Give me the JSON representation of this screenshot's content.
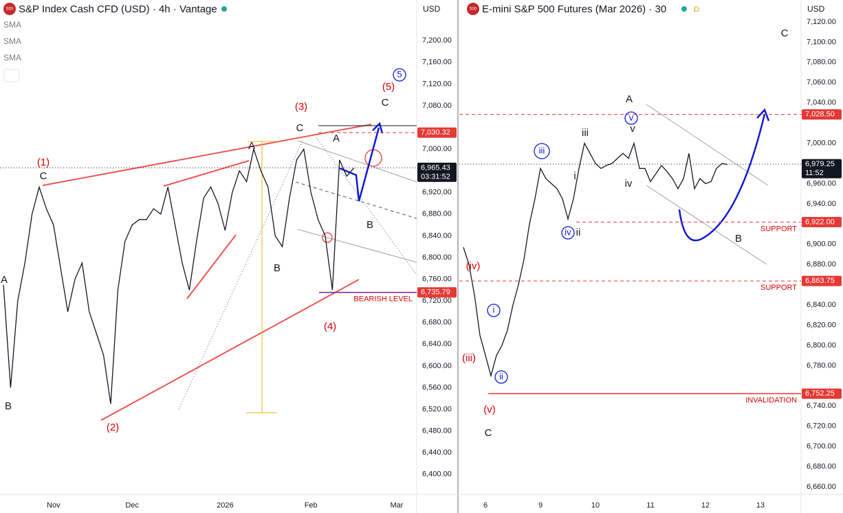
{
  "header": {
    "badge": "500",
    "left_title": "S&P Index Cash CFD (USD) · 4h · Vantage",
    "sma": [
      "SMA",
      "SMA",
      "SMA"
    ],
    "currency": "USD",
    "right_title": "E-mini S&P 500 Futures (Mar 2026) · 30",
    "right_currency": "USD",
    "right_flag": "D"
  },
  "chart_data": [
    {
      "type": "line",
      "color": "#131722",
      "categories": [
        null,
        null,
        null,
        null,
        null,
        null,
        null,
        "Nov",
        null,
        null,
        null,
        null,
        null,
        null,
        null,
        null,
        null,
        null,
        "Dec",
        null,
        null,
        null,
        null,
        null,
        null,
        null,
        null,
        null,
        null,
        null,
        null,
        "2026",
        null,
        null,
        null,
        null,
        null,
        null,
        null,
        null,
        null,
        null,
        null,
        "Feb",
        null,
        null,
        null,
        null,
        null,
        null,
        null,
        null,
        null,
        null,
        null,
        "Mar",
        null,
        null
      ],
      "values": [
        6750,
        6560,
        6720,
        6790,
        6880,
        6930,
        6890,
        6860,
        6780,
        6700,
        6760,
        6790,
        6700,
        6660,
        6620,
        6530,
        6740,
        6830,
        6860,
        6870,
        6870,
        6890,
        6880,
        6930,
        6860,
        6790,
        6740,
        6830,
        6910,
        6930,
        6900,
        6850,
        6920,
        6960,
        6940,
        7000,
        6960,
        6930,
        6840,
        6820,
        6910,
        6980,
        7000,
        6920,
        6870,
        6840,
        6740,
        6980,
        6950,
        6965,
        null,
        null,
        null,
        null,
        null,
        null,
        null,
        null
      ],
      "ylim": [
        6363,
        7275
      ],
      "yticks": [
        {
          "value": 6400,
          "label": "6,400.00"
        },
        {
          "value": 6440,
          "label": "6,440.00"
        },
        {
          "value": 6480,
          "label": "6,480.00"
        },
        {
          "value": 6520,
          "label": "6,520.00"
        },
        {
          "value": 6560,
          "label": "6,560.00"
        },
        {
          "value": 6600,
          "label": "6,600.00"
        },
        {
          "value": 6640,
          "label": "6,640.00"
        },
        {
          "value": 6680,
          "label": "6,680.00"
        },
        {
          "value": 6720,
          "label": "6,720.00"
        },
        {
          "value": 6760,
          "label": "6,760.00"
        },
        {
          "value": 6800,
          "label": "6,800.00"
        },
        {
          "value": 6840,
          "label": "6,840.00"
        },
        {
          "value": 6880,
          "label": "6,880.00"
        },
        {
          "value": 6920,
          "label": "6,920.00"
        },
        {
          "value": 6960,
          "label": "6,960.00"
        },
        {
          "value": 7000,
          "label": "7,000.00"
        },
        {
          "value": 7080,
          "label": "7,080.00"
        },
        {
          "value": 7120,
          "label": "7,120.00"
        },
        {
          "value": 7160,
          "label": "7,160.00"
        },
        {
          "value": 7200,
          "label": "7,200.00"
        }
      ],
      "grid": false,
      "levels": [
        {
          "value": 7030.32,
          "label": "7,030.32",
          "color": "#e53935",
          "style": "dashed"
        },
        {
          "value": 6965.43,
          "label": "6,965.43",
          "color": "#131722",
          "style": "dotted"
        },
        {
          "value": 6735.79,
          "label": "6,735.79",
          "color": "#7b1fa2",
          "style": "solid",
          "note": "BEARISH LEVEL"
        }
      ],
      "countdown": "03:31:52",
      "annotations": [
        {
          "text": "A",
          "color": "#131722"
        },
        {
          "text": "B",
          "color": "#131722"
        },
        {
          "text": "(1)",
          "color": "#d50000"
        },
        {
          "text": "C",
          "color": "#131722"
        },
        {
          "text": "(2)",
          "color": "#d50000"
        },
        {
          "text": "A",
          "color": "#131722"
        },
        {
          "text": "B",
          "color": "#131722"
        },
        {
          "text": "(3)",
          "color": "#d50000"
        },
        {
          "text": "C",
          "color": "#131722"
        },
        {
          "text": "A",
          "color": "#131722"
        },
        {
          "text": "(4)",
          "color": "#d50000"
        },
        {
          "text": "B",
          "color": "#131722"
        },
        {
          "text": "C",
          "color": "#131722"
        },
        {
          "text": "(5)",
          "color": "#d50000"
        },
        {
          "text": "5",
          "color": "#0d1bd1",
          "circled": true
        }
      ]
    },
    {
      "type": "line",
      "color": "#131722",
      "categories": [
        null,
        null,
        null,
        null,
        "6",
        null,
        null,
        null,
        null,
        null,
        null,
        null,
        null,
        null,
        "9",
        null,
        null,
        null,
        null,
        null,
        null,
        null,
        null,
        null,
        "10",
        null,
        null,
        null,
        null,
        null,
        null,
        null,
        null,
        null,
        "11",
        null,
        null,
        null,
        null,
        null,
        null,
        null,
        null,
        null,
        "12",
        null,
        null,
        null,
        null,
        null,
        null,
        null,
        null,
        null,
        "13",
        null,
        null,
        null,
        null,
        null,
        null,
        null
      ],
      "values": [
        6897,
        6880,
        6850,
        6810,
        6790,
        6770,
        6790,
        6800,
        6815,
        6840,
        6860,
        6885,
        6920,
        6945,
        6975,
        6965,
        6960,
        6955,
        6945,
        6925,
        6945,
        6975,
        7000,
        6990,
        6980,
        6975,
        6978,
        6980,
        6985,
        6990,
        6985,
        7000,
        6975,
        6975,
        6962,
        6970,
        6978,
        6972,
        6965,
        6955,
        6965,
        6990,
        6955,
        6965,
        6960,
        6962,
        6975,
        6980,
        6979,
        null,
        null,
        null,
        null,
        null,
        null,
        null,
        null,
        null,
        null,
        null,
        null,
        null
      ],
      "ylim": [
        6652.5,
        7141.7
      ],
      "yticks": [
        {
          "value": 6660,
          "label": "6,660.00"
        },
        {
          "value": 6680,
          "label": "6,680.00"
        },
        {
          "value": 6700,
          "label": "6,700.00"
        },
        {
          "value": 6720,
          "label": "6,720.00"
        },
        {
          "value": 6740,
          "label": "6,740.00"
        },
        {
          "value": 6780,
          "label": "6,780.00"
        },
        {
          "value": 6800,
          "label": "6,800.00"
        },
        {
          "value": 6820,
          "label": "6,820.00"
        },
        {
          "value": 6840,
          "label": "6,840.00"
        },
        {
          "value": 6880,
          "label": "6,880.00"
        },
        {
          "value": 6900,
          "label": "6,900.00"
        },
        {
          "value": 6940,
          "label": "6,940.00"
        },
        {
          "value": 6960,
          "label": "6,960.00"
        },
        {
          "value": 7000,
          "label": "7,000.00"
        },
        {
          "value": 7040,
          "label": "7,040.00"
        },
        {
          "value": 7060,
          "label": "7,060.00"
        },
        {
          "value": 7080,
          "label": "7,080.00"
        },
        {
          "value": 7100,
          "label": "7,100.00"
        },
        {
          "value": 7120,
          "label": "7,120.00"
        }
      ],
      "grid": false,
      "levels": [
        {
          "value": 7028.5,
          "label": "7,028.50",
          "color": "#e53935",
          "style": "dashed"
        },
        {
          "value": 6979.25,
          "label": "6,979.25",
          "color": "#131722",
          "style": "dotted"
        },
        {
          "value": 6922,
          "label": "6,922.00",
          "color": "#e53935",
          "style": "dashed",
          "note": "SUPPORT"
        },
        {
          "value": 6863.75,
          "label": "6,863.75",
          "color": "#e53935",
          "style": "dashed",
          "note": "SUPPORT"
        },
        {
          "value": 6752.25,
          "label": "6,752.25",
          "color": "#e53935",
          "style": "solid",
          "note": "INVALIDATION"
        }
      ],
      "countdown": "11:52",
      "annotations": [
        {
          "text": "(iv)",
          "color": "#d50000"
        },
        {
          "text": "i",
          "color": "#0d1bd1",
          "circled": true
        },
        {
          "text": "(iii)",
          "color": "#d50000"
        },
        {
          "text": "ii",
          "color": "#0d1bd1",
          "circled": true
        },
        {
          "text": "(v)",
          "color": "#d50000"
        },
        {
          "text": "C",
          "color": "#131722"
        },
        {
          "text": "iii",
          "color": "#0d1bd1",
          "circled": true
        },
        {
          "text": "iii",
          "color": "#131722"
        },
        {
          "text": "i",
          "color": "#131722"
        },
        {
          "text": "iv",
          "color": "#0d1bd1",
          "circled": true
        },
        {
          "text": "ii",
          "color": "#131722"
        },
        {
          "text": "A",
          "color": "#131722"
        },
        {
          "text": "v",
          "color": "#0d1bd1",
          "circled": true
        },
        {
          "text": "v",
          "color": "#131722"
        },
        {
          "text": "iv",
          "color": "#131722"
        },
        {
          "text": "B",
          "color": "#131722"
        },
        {
          "text": "C",
          "color": "#131722"
        }
      ]
    }
  ]
}
